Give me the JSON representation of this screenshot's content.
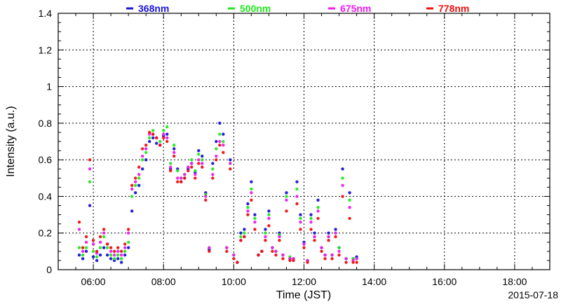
{
  "chart_data": {
    "type": "scatter",
    "title": "",
    "xlabel": "Time (JST)",
    "ylabel": "Intensity (a.u.)",
    "date_label": "2015-07-18",
    "xlim": [
      "05:00",
      "19:00"
    ],
    "ylim": [
      0,
      1.4
    ],
    "grid": true,
    "legend_position": "top",
    "x_ticks": [
      "06:00",
      "08:00",
      "10:00",
      "12:00",
      "14:00",
      "16:00",
      "18:00"
    ],
    "y_ticks": [
      "0",
      "0.2",
      "0.4",
      "0.6",
      "0.8",
      "1",
      "1.2",
      "1.4"
    ],
    "series": [
      {
        "name": "368nm",
        "color": "#1a14d6",
        "x": [
          "05:36",
          "05:42",
          "05:48",
          "05:54",
          "06:00",
          "06:06",
          "06:12",
          "06:18",
          "06:24",
          "06:30",
          "06:36",
          "06:42",
          "06:48",
          "06:54",
          "07:00",
          "07:06",
          "07:12",
          "07:18",
          "07:24",
          "07:30",
          "07:36",
          "07:42",
          "07:48",
          "07:54",
          "08:00",
          "08:06",
          "08:12",
          "08:18",
          "08:24",
          "08:30",
          "08:36",
          "08:42",
          "08:48",
          "08:54",
          "09:00",
          "09:06",
          "09:12",
          "09:18",
          "09:24",
          "09:30",
          "09:36",
          "09:42",
          "09:48",
          "09:54",
          "10:00",
          "10:06",
          "10:12",
          "10:18",
          "10:24",
          "10:30",
          "10:36",
          "10:42",
          "10:48",
          "10:54",
          "11:00",
          "11:06",
          "11:12",
          "11:18",
          "11:24",
          "11:30",
          "11:36",
          "11:42",
          "11:48",
          "11:54",
          "12:00",
          "12:06",
          "12:12",
          "12:18",
          "12:24",
          "12:30",
          "12:36",
          "12:42",
          "12:48",
          "12:54",
          "13:00",
          "13:06",
          "13:12",
          "13:18",
          "13:24",
          "13:30"
        ],
        "values": [
          0.08,
          0.06,
          0.1,
          0.35,
          0.07,
          0.05,
          0.08,
          0.12,
          0.08,
          0.06,
          0.05,
          0.06,
          0.04,
          0.08,
          0.12,
          0.32,
          0.42,
          0.46,
          0.55,
          0.6,
          0.7,
          0.72,
          0.69,
          0.68,
          0.73,
          0.74,
          0.55,
          0.66,
          0.55,
          0.48,
          0.5,
          0.55,
          0.58,
          0.53,
          0.65,
          0.62,
          0.42,
          0.11,
          0.58,
          0.7,
          0.8,
          0.74,
          0.12,
          0.6,
          0.08,
          0.04,
          0.2,
          0.22,
          0.36,
          0.48,
          0.3,
          0.08,
          0.1,
          0.22,
          0.32,
          0.12,
          0.1,
          0.2,
          0.08,
          0.42,
          0.06,
          0.06,
          0.48,
          0.3,
          0.15,
          0.05,
          0.3,
          0.2,
          0.38,
          0.12,
          0.08,
          0.2,
          0.08,
          0.22,
          0.12,
          0.55,
          0.06,
          0.42,
          0.06,
          0.07
        ]
      },
      {
        "name": "500nm",
        "color": "#22e81c",
        "x": [
          "05:36",
          "05:42",
          "05:48",
          "05:54",
          "06:00",
          "06:06",
          "06:12",
          "06:18",
          "06:24",
          "06:30",
          "06:36",
          "06:42",
          "06:48",
          "06:54",
          "07:00",
          "07:06",
          "07:12",
          "07:18",
          "07:24",
          "07:30",
          "07:36",
          "07:42",
          "07:48",
          "07:54",
          "08:00",
          "08:06",
          "08:12",
          "08:18",
          "08:24",
          "08:30",
          "08:36",
          "08:42",
          "08:48",
          "08:54",
          "09:00",
          "09:06",
          "09:12",
          "09:18",
          "09:24",
          "09:30",
          "09:36",
          "09:42",
          "09:48",
          "09:54",
          "10:00",
          "10:06",
          "10:12",
          "10:18",
          "10:24",
          "10:30",
          "10:36",
          "10:42",
          "10:48",
          "10:54",
          "11:00",
          "11:06",
          "11:12",
          "11:18",
          "11:24",
          "11:30",
          "11:36",
          "11:42",
          "11:48",
          "11:54",
          "12:00",
          "12:06",
          "12:12",
          "12:18",
          "12:24",
          "12:30",
          "12:36",
          "12:42",
          "12:48",
          "12:54",
          "13:00",
          "13:06",
          "13:12",
          "13:18",
          "13:24",
          "13:30"
        ],
        "values": [
          0.12,
          0.08,
          0.12,
          0.48,
          0.1,
          0.07,
          0.12,
          0.18,
          0.12,
          0.08,
          0.06,
          0.08,
          0.06,
          0.1,
          0.15,
          0.4,
          0.46,
          0.5,
          0.6,
          0.64,
          0.72,
          0.76,
          0.72,
          0.7,
          0.76,
          0.78,
          0.58,
          0.68,
          0.54,
          0.5,
          0.52,
          0.56,
          0.6,
          0.54,
          0.63,
          0.6,
          0.41,
          0.12,
          0.55,
          0.66,
          0.74,
          0.7,
          0.12,
          0.58,
          0.08,
          0.04,
          0.18,
          0.2,
          0.34,
          0.44,
          0.28,
          0.08,
          0.1,
          0.2,
          0.3,
          0.12,
          0.1,
          0.19,
          0.08,
          0.4,
          0.07,
          0.06,
          0.44,
          0.28,
          0.14,
          0.05,
          0.28,
          0.18,
          0.34,
          0.12,
          0.08,
          0.18,
          0.08,
          0.2,
          0.12,
          0.5,
          0.06,
          0.38,
          0.06,
          0.06
        ]
      },
      {
        "name": "675nm",
        "color": "#f01bf0",
        "x": [
          "05:36",
          "05:42",
          "05:48",
          "05:54",
          "06:00",
          "06:06",
          "06:12",
          "06:18",
          "06:24",
          "06:30",
          "06:36",
          "06:42",
          "06:48",
          "06:54",
          "07:00",
          "07:06",
          "07:12",
          "07:18",
          "07:24",
          "07:30",
          "07:36",
          "07:42",
          "07:48",
          "07:54",
          "08:00",
          "08:06",
          "08:12",
          "08:18",
          "08:24",
          "08:30",
          "08:36",
          "08:42",
          "08:48",
          "08:54",
          "09:00",
          "09:06",
          "09:12",
          "09:18",
          "09:24",
          "09:30",
          "09:36",
          "09:42",
          "09:48",
          "09:54",
          "10:00",
          "10:06",
          "10:12",
          "10:18",
          "10:24",
          "10:30",
          "10:36",
          "10:42",
          "10:48",
          "10:54",
          "11:00",
          "11:06",
          "11:12",
          "11:18",
          "11:24",
          "11:30",
          "11:36",
          "11:42",
          "11:48",
          "11:54",
          "12:00",
          "12:06",
          "12:12",
          "12:18",
          "12:24",
          "12:30",
          "12:36",
          "12:42",
          "12:48",
          "12:54",
          "13:00",
          "13:06",
          "13:12",
          "13:18",
          "13:24",
          "13:30"
        ],
        "values": [
          0.22,
          0.1,
          0.15,
          0.55,
          0.14,
          0.09,
          0.15,
          0.2,
          0.14,
          0.1,
          0.08,
          0.1,
          0.08,
          0.12,
          0.2,
          0.44,
          0.48,
          0.52,
          0.62,
          0.66,
          0.74,
          0.74,
          0.72,
          0.68,
          0.74,
          0.72,
          0.56,
          0.64,
          0.5,
          0.5,
          0.52,
          0.56,
          0.58,
          0.52,
          0.6,
          0.58,
          0.4,
          0.12,
          0.52,
          0.62,
          0.7,
          0.68,
          0.12,
          0.58,
          0.08,
          0.04,
          0.16,
          0.18,
          0.32,
          0.42,
          0.26,
          0.08,
          0.1,
          0.18,
          0.28,
          0.12,
          0.1,
          0.18,
          0.08,
          0.38,
          0.06,
          0.06,
          0.4,
          0.26,
          0.14,
          0.05,
          0.26,
          0.18,
          0.32,
          0.12,
          0.08,
          0.18,
          0.08,
          0.2,
          0.1,
          0.46,
          0.06,
          0.34,
          0.05,
          0.06
        ]
      },
      {
        "name": "778nm",
        "color": "#ee1111",
        "x": [
          "05:36",
          "05:42",
          "05:48",
          "05:54",
          "06:00",
          "06:06",
          "06:12",
          "06:18",
          "06:24",
          "06:30",
          "06:36",
          "06:42",
          "06:48",
          "06:54",
          "07:00",
          "07:06",
          "07:12",
          "07:18",
          "07:24",
          "07:30",
          "07:36",
          "07:42",
          "07:48",
          "07:54",
          "08:00",
          "08:06",
          "08:12",
          "08:18",
          "08:24",
          "08:30",
          "08:36",
          "08:42",
          "08:48",
          "08:54",
          "09:00",
          "09:06",
          "09:12",
          "09:18",
          "09:24",
          "09:30",
          "09:36",
          "09:42",
          "09:48",
          "09:54",
          "10:00",
          "10:06",
          "10:12",
          "10:18",
          "10:24",
          "10:30",
          "10:36",
          "10:42",
          "10:48",
          "10:54",
          "11:00",
          "11:06",
          "11:12",
          "11:18",
          "11:24",
          "11:30",
          "11:36",
          "11:42",
          "11:48",
          "11:54",
          "12:00",
          "12:06",
          "12:12",
          "12:18",
          "12:24",
          "12:30",
          "12:36",
          "12:42",
          "12:48",
          "12:54",
          "13:00",
          "13:06",
          "13:12",
          "13:18",
          "13:24",
          "13:30"
        ],
        "values": [
          0.26,
          0.12,
          0.18,
          0.6,
          0.16,
          0.1,
          0.18,
          0.22,
          0.14,
          0.12,
          0.1,
          0.12,
          0.1,
          0.14,
          0.22,
          0.46,
          0.5,
          0.56,
          0.66,
          0.68,
          0.75,
          0.74,
          0.72,
          0.68,
          0.72,
          0.7,
          0.54,
          0.62,
          0.48,
          0.48,
          0.5,
          0.54,
          0.56,
          0.5,
          0.58,
          0.56,
          0.38,
          0.1,
          0.5,
          0.6,
          0.68,
          0.64,
          0.1,
          0.55,
          0.06,
          0.04,
          0.16,
          0.18,
          0.3,
          0.38,
          0.22,
          0.08,
          0.1,
          0.16,
          0.24,
          0.1,
          0.08,
          0.16,
          0.06,
          0.32,
          0.05,
          0.05,
          0.36,
          0.22,
          0.12,
          0.04,
          0.22,
          0.16,
          0.28,
          0.1,
          0.06,
          0.16,
          0.06,
          0.18,
          0.08,
          0.4,
          0.04,
          0.28,
          0.04,
          0.04
        ]
      }
    ]
  }
}
